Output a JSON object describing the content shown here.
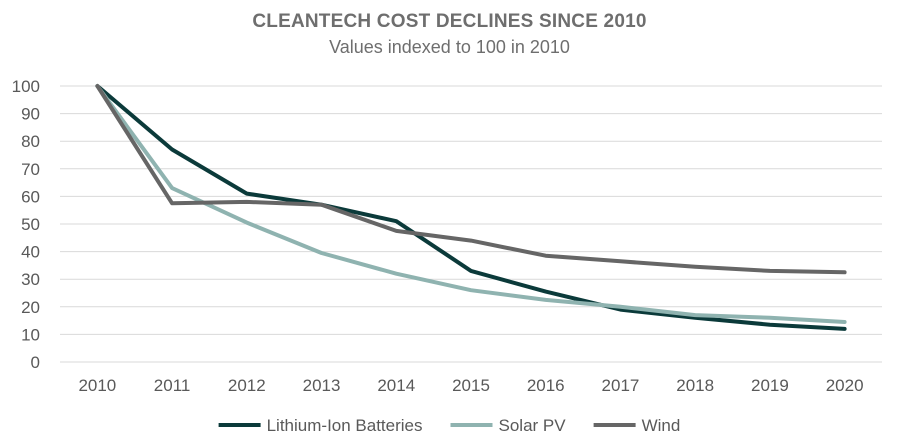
{
  "chart_data": {
    "type": "line",
    "title": "CLEANTECH COST DECLINES SINCE 2010",
    "subtitle": "Values indexed to 100 in 2010",
    "xlabel": "",
    "ylabel": "",
    "categories": [
      "2010",
      "2011",
      "2012",
      "2013",
      "2014",
      "2015",
      "2016",
      "2017",
      "2018",
      "2019",
      "2020"
    ],
    "ylim": [
      0,
      100
    ],
    "yticks": [
      0,
      10,
      20,
      30,
      40,
      50,
      60,
      70,
      80,
      90,
      100
    ],
    "grid": true,
    "legend_position": "bottom",
    "series": [
      {
        "name": "Lithium-Ion Batteries",
        "color": "#0b3a3a",
        "values": [
          100,
          77,
          61,
          57,
          51,
          33,
          25.5,
          19,
          16,
          13.5,
          12
        ]
      },
      {
        "name": "Solar PV",
        "color": "#8fb3b0",
        "values": [
          100,
          63,
          50.5,
          39.5,
          32,
          26,
          22.5,
          20,
          17,
          16,
          14.5
        ]
      },
      {
        "name": "Wind",
        "color": "#666666",
        "values": [
          100,
          57.5,
          58,
          57,
          47.5,
          44,
          38.5,
          36.5,
          34.5,
          33,
          32.5
        ]
      }
    ]
  }
}
